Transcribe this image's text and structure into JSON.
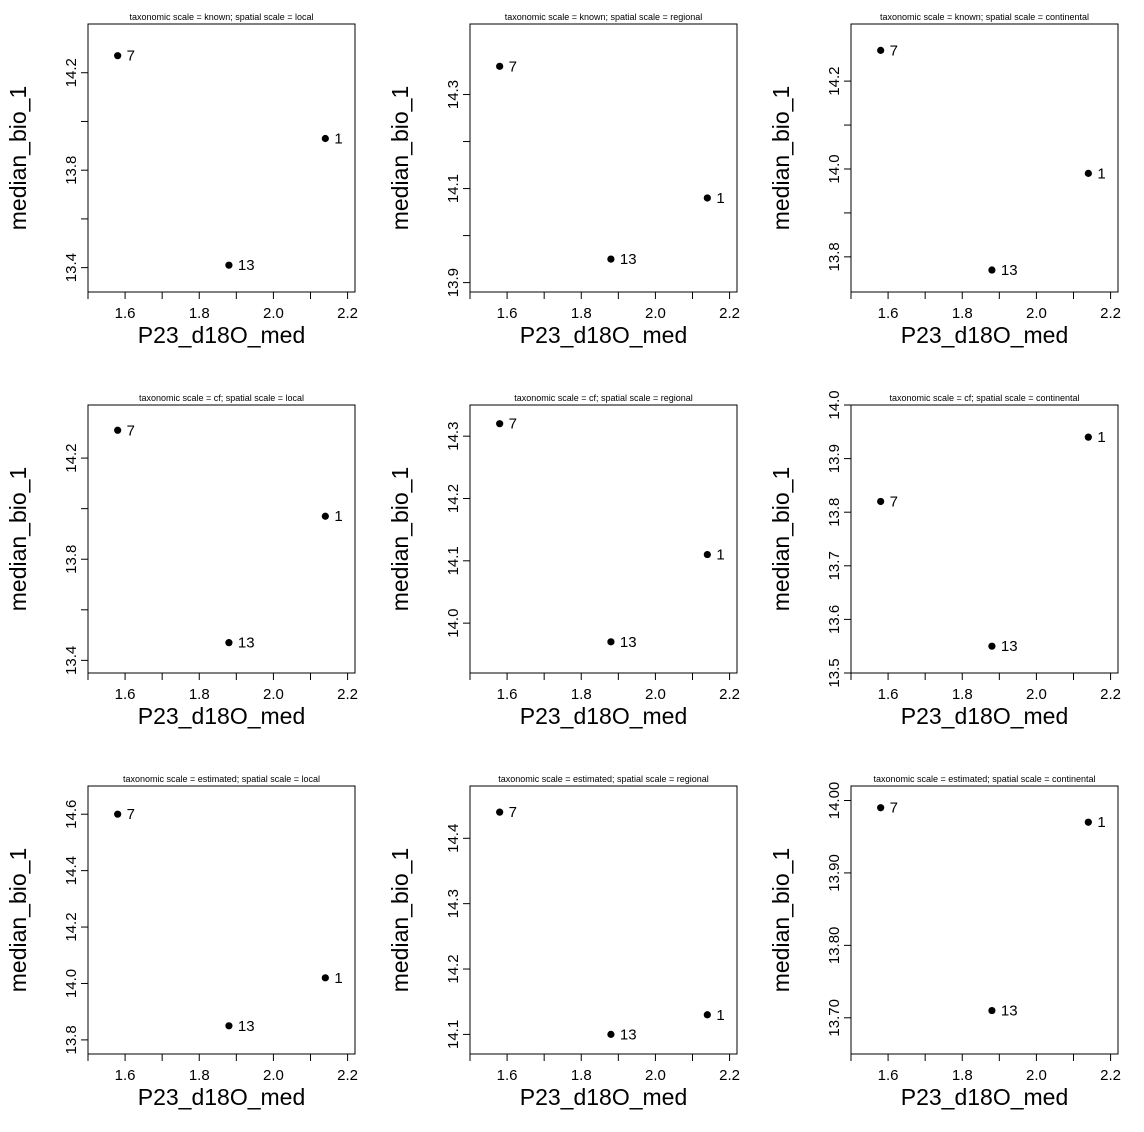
{
  "chart_data": [
    {
      "type": "scatter",
      "title": "taxonomic scale = known; spatial scale = local",
      "xlabel": "P23_d18O_med",
      "ylabel": "median_bio_1",
      "xlim": [
        1.5,
        2.22
      ],
      "ylim": [
        13.3,
        14.4
      ],
      "xticks": [
        "1.6",
        "1.8",
        "2.0",
        "2.2"
      ],
      "yticks": [
        "13.4",
        "13.8",
        "14.2"
      ],
      "grid": false,
      "points": [
        {
          "x": 1.58,
          "y": 14.27,
          "label": "7"
        },
        {
          "x": 2.14,
          "y": 13.93,
          "label": "1"
        },
        {
          "x": 1.88,
          "y": 13.41,
          "label": "13"
        }
      ]
    },
    {
      "type": "scatter",
      "title": "taxonomic scale = known; spatial scale = regional",
      "xlabel": "P23_d18O_med",
      "ylabel": "median_bio_1",
      "xlim": [
        1.5,
        2.22
      ],
      "ylim": [
        13.88,
        14.45
      ],
      "xticks": [
        "1.6",
        "1.8",
        "2.0",
        "2.2"
      ],
      "yticks": [
        "13.9",
        "14.1",
        "14.3"
      ],
      "grid": false,
      "points": [
        {
          "x": 1.58,
          "y": 14.36,
          "label": "7"
        },
        {
          "x": 2.14,
          "y": 14.08,
          "label": "1"
        },
        {
          "x": 1.88,
          "y": 13.95,
          "label": "13"
        }
      ]
    },
    {
      "type": "scatter",
      "title": "taxonomic scale = known; spatial scale = continental",
      "xlabel": "P23_d18O_med",
      "ylabel": "median_bio_1",
      "xlim": [
        1.5,
        2.22
      ],
      "ylim": [
        13.72,
        14.33
      ],
      "xticks": [
        "1.6",
        "1.8",
        "2.0",
        "2.2"
      ],
      "yticks": [
        "13.8",
        "14.0",
        "14.2"
      ],
      "grid": false,
      "points": [
        {
          "x": 1.58,
          "y": 14.27,
          "label": "7"
        },
        {
          "x": 2.14,
          "y": 13.99,
          "label": "1"
        },
        {
          "x": 1.88,
          "y": 13.77,
          "label": "13"
        }
      ]
    },
    {
      "type": "scatter",
      "title": "taxonomic scale = cf; spatial scale = local",
      "xlabel": "P23_d18O_med",
      "ylabel": "median_bio_1",
      "xlim": [
        1.5,
        2.22
      ],
      "ylim": [
        13.35,
        14.41
      ],
      "xticks": [
        "1.6",
        "1.8",
        "2.0",
        "2.2"
      ],
      "yticks": [
        "13.4",
        "13.8",
        "14.2"
      ],
      "grid": false,
      "points": [
        {
          "x": 1.58,
          "y": 14.31,
          "label": "7"
        },
        {
          "x": 2.14,
          "y": 13.97,
          "label": "1"
        },
        {
          "x": 1.88,
          "y": 13.47,
          "label": "13"
        }
      ]
    },
    {
      "type": "scatter",
      "title": "taxonomic scale = cf; spatial scale = regional",
      "xlabel": "P23_d18O_med",
      "ylabel": "median_bio_1",
      "xlim": [
        1.5,
        2.22
      ],
      "ylim": [
        13.92,
        14.35
      ],
      "xticks": [
        "1.6",
        "1.8",
        "2.0",
        "2.2"
      ],
      "yticks": [
        "14.0",
        "14.1",
        "14.2",
        "14.3"
      ],
      "grid": false,
      "points": [
        {
          "x": 1.58,
          "y": 14.32,
          "label": "7"
        },
        {
          "x": 2.14,
          "y": 14.11,
          "label": "1"
        },
        {
          "x": 1.88,
          "y": 13.97,
          "label": "13"
        }
      ]
    },
    {
      "type": "scatter",
      "title": "taxonomic scale = cf; spatial scale = continental",
      "xlabel": "P23_d18O_med",
      "ylabel": "median_bio_1",
      "xlim": [
        1.5,
        2.22
      ],
      "ylim": [
        13.5,
        14.0
      ],
      "xticks": [
        "1.6",
        "1.8",
        "2.0",
        "2.2"
      ],
      "yticks": [
        "13.5",
        "13.6",
        "13.7",
        "13.8",
        "13.9",
        "14.0"
      ],
      "grid": false,
      "points": [
        {
          "x": 1.58,
          "y": 13.82,
          "label": "7"
        },
        {
          "x": 2.14,
          "y": 13.94,
          "label": "1"
        },
        {
          "x": 1.88,
          "y": 13.55,
          "label": "13"
        }
      ]
    },
    {
      "type": "scatter",
      "title": "taxonomic scale = estimated; spatial scale = local",
      "xlabel": "P23_d18O_med",
      "ylabel": "median_bio_1",
      "xlim": [
        1.5,
        2.22
      ],
      "ylim": [
        13.75,
        14.7
      ],
      "xticks": [
        "1.6",
        "1.8",
        "2.0",
        "2.2"
      ],
      "yticks": [
        "13.8",
        "14.0",
        "14.2",
        "14.4",
        "14.6"
      ],
      "grid": false,
      "points": [
        {
          "x": 1.58,
          "y": 14.6,
          "label": "7"
        },
        {
          "x": 2.14,
          "y": 14.02,
          "label": "1"
        },
        {
          "x": 1.88,
          "y": 13.85,
          "label": "13"
        }
      ]
    },
    {
      "type": "scatter",
      "title": "taxonomic scale = estimated; spatial scale = regional",
      "xlabel": "P23_d18O_med",
      "ylabel": "median_bio_1",
      "xlim": [
        1.5,
        2.22
      ],
      "ylim": [
        14.07,
        14.48
      ],
      "xticks": [
        "1.6",
        "1.8",
        "2.0",
        "2.2"
      ],
      "yticks": [
        "14.1",
        "14.2",
        "14.3",
        "14.4"
      ],
      "grid": false,
      "points": [
        {
          "x": 1.58,
          "y": 14.44,
          "label": "7"
        },
        {
          "x": 2.14,
          "y": 14.13,
          "label": "1"
        },
        {
          "x": 1.88,
          "y": 14.1,
          "label": "13"
        }
      ]
    },
    {
      "type": "scatter",
      "title": "taxonomic scale = estimated; spatial scale = continental",
      "xlabel": "P23_d18O_med",
      "ylabel": "median_bio_1",
      "xlim": [
        1.5,
        2.22
      ],
      "ylim": [
        13.65,
        14.02
      ],
      "xticks": [
        "1.6",
        "1.8",
        "2.0",
        "2.2"
      ],
      "yticks": [
        "13.70",
        "13.80",
        "13.90",
        "14.00"
      ],
      "grid": false,
      "points": [
        {
          "x": 1.58,
          "y": 13.99,
          "label": "7"
        },
        {
          "x": 2.14,
          "y": 13.97,
          "label": "1"
        },
        {
          "x": 1.88,
          "y": 13.71,
          "label": "13"
        }
      ]
    }
  ]
}
